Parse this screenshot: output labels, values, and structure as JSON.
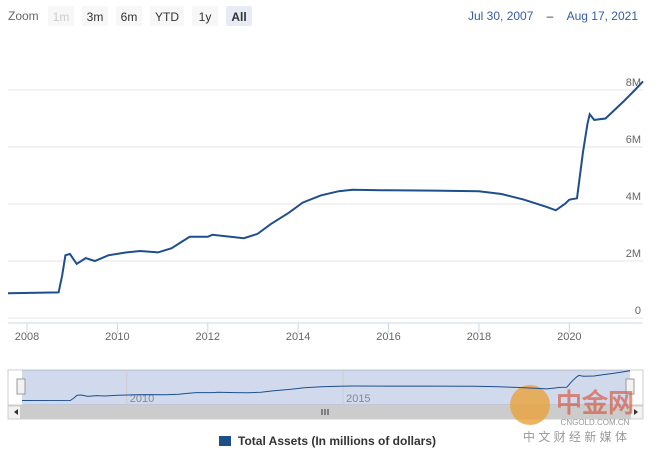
{
  "chart_data": {
    "type": "line",
    "range_selector": {
      "label": "Zoom",
      "buttons": [
        "1m",
        "3m",
        "6m",
        "YTD",
        "1y",
        "All"
      ],
      "from": "Jul 30, 2007",
      "separator": "–",
      "to": "Aug 17, 2021"
    },
    "x": [
      2007.58,
      2008.7,
      2008.78,
      2008.85,
      2008.95,
      2009.1,
      2009.3,
      2009.5,
      2009.8,
      2010.2,
      2010.5,
      2010.9,
      2011.2,
      2011.4,
      2011.6,
      2012.0,
      2012.1,
      2012.5,
      2012.8,
      2013.1,
      2013.4,
      2013.8,
      2014.1,
      2014.5,
      2014.9,
      2015.2,
      2016.0,
      2017.0,
      2018.0,
      2018.5,
      2019.0,
      2019.5,
      2019.7,
      2019.9,
      2020.0,
      2020.17,
      2020.3,
      2020.4,
      2020.45,
      2020.55,
      2020.8,
      2021.0,
      2021.2,
      2021.45,
      2021.63
    ],
    "series": [
      {
        "name": "Total Assets (In millions of dollars)",
        "color": "#1f4e8c",
        "values": [
          870000,
          900000,
          1500000,
          2200000,
          2250000,
          1900000,
          2100000,
          2000000,
          2200000,
          2300000,
          2350000,
          2300000,
          2450000,
          2650000,
          2850000,
          2850000,
          2920000,
          2850000,
          2800000,
          2950000,
          3300000,
          3700000,
          4050000,
          4300000,
          4450000,
          4500000,
          4480000,
          4470000,
          4450000,
          4350000,
          4150000,
          3900000,
          3780000,
          4000000,
          4150000,
          4200000,
          5800000,
          6800000,
          7150000,
          6950000,
          7000000,
          7300000,
          7600000,
          8000000,
          8300000
        ]
      }
    ],
    "xlim": [
      2007.58,
      2021.63
    ],
    "xticks": [
      2008,
      2010,
      2012,
      2014,
      2016,
      2018,
      2020
    ],
    "ylim": [
      0,
      8000000
    ],
    "yticks": [
      0,
      {
        "value": 2000000,
        "label": "2M"
      },
      {
        "value": 4000000,
        "label": "4M"
      },
      {
        "value": 6000000,
        "label": "6M"
      },
      {
        "value": 8000000,
        "label": "8M"
      }
    ],
    "grid": true,
    "navigator": {
      "xticks": [
        2010,
        2015
      ]
    },
    "watermark": {
      "logo": "中金网",
      "site": "CNGOLD.COM.CN",
      "slogan": "中 文 财 经 新 媒 体"
    }
  }
}
